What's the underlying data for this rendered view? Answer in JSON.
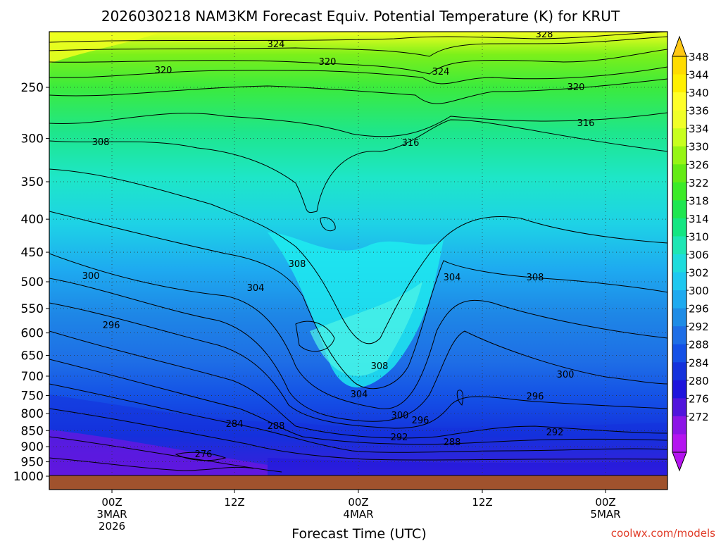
{
  "chart_data": {
    "type": "heatmap",
    "title": "2026030218 NAM3KM Forecast Equiv. Potential Temperature (K) for KRUT",
    "xlabel": "Forecast Time (UTC)",
    "ylabel": "",
    "y_scale": "log",
    "y_ticks": [
      "250",
      "300",
      "350",
      "400",
      "450",
      "500",
      "550",
      "600",
      "650",
      "700",
      "750",
      "800",
      "850",
      "900",
      "950",
      "1000"
    ],
    "x_ticks": [
      {
        "lines": [
          "00Z",
          "3MAR",
          "2026"
        ]
      },
      {
        "lines": [
          "12Z"
        ]
      },
      {
        "lines": [
          "00Z",
          "4MAR"
        ]
      },
      {
        "lines": [
          "12Z"
        ]
      },
      {
        "lines": [
          "00Z",
          "5MAR"
        ]
      }
    ],
    "colorbar": {
      "labels": [
        "348",
        "344",
        "340",
        "336",
        "334",
        "330",
        "326",
        "322",
        "318",
        "314",
        "310",
        "306",
        "302",
        "300",
        "296",
        "292",
        "288",
        "284",
        "280",
        "276",
        "272"
      ],
      "colors": [
        "#ffdc00",
        "#fff000",
        "#ffff28",
        "#f0ff28",
        "#c8ff1e",
        "#96f514",
        "#64eb14",
        "#3ceb28",
        "#1ee650",
        "#14e682",
        "#1ee6b4",
        "#1edcdc",
        "#1ec8f0",
        "#1eaaf0",
        "#1e8ce6",
        "#1e6ee6",
        "#1450e6",
        "#1432dc",
        "#1e14dc",
        "#5014dc",
        "#8c14e6",
        "#b414f0"
      ]
    },
    "contours": [
      {
        "label": "328",
        "shape": "top ridge near 220 hPa"
      },
      {
        "label": "324",
        "shape": "upper troposphere"
      },
      {
        "label": "320",
        "shape": "upper troposphere"
      },
      {
        "label": "316",
        "shape": "dips toward 4MAR 06Z"
      },
      {
        "label": "308",
        "shape": "deep trough reaching 700 hPa near 4MAR 00Z"
      },
      {
        "label": "304",
        "shape": "trough reaching 750 hPa"
      },
      {
        "label": "300",
        "shape": "mid-low levels"
      },
      {
        "label": "296",
        "shape": "low levels"
      },
      {
        "label": "292",
        "shape": "low levels"
      },
      {
        "label": "288",
        "shape": "near 850 hPa"
      },
      {
        "label": "284",
        "shape": "near 850 hPa"
      },
      {
        "label": "276",
        "shape": "near surface, 3MAR"
      }
    ],
    "grid": true,
    "legend": "colorbar right"
  },
  "credit": "coolwx.com/models"
}
